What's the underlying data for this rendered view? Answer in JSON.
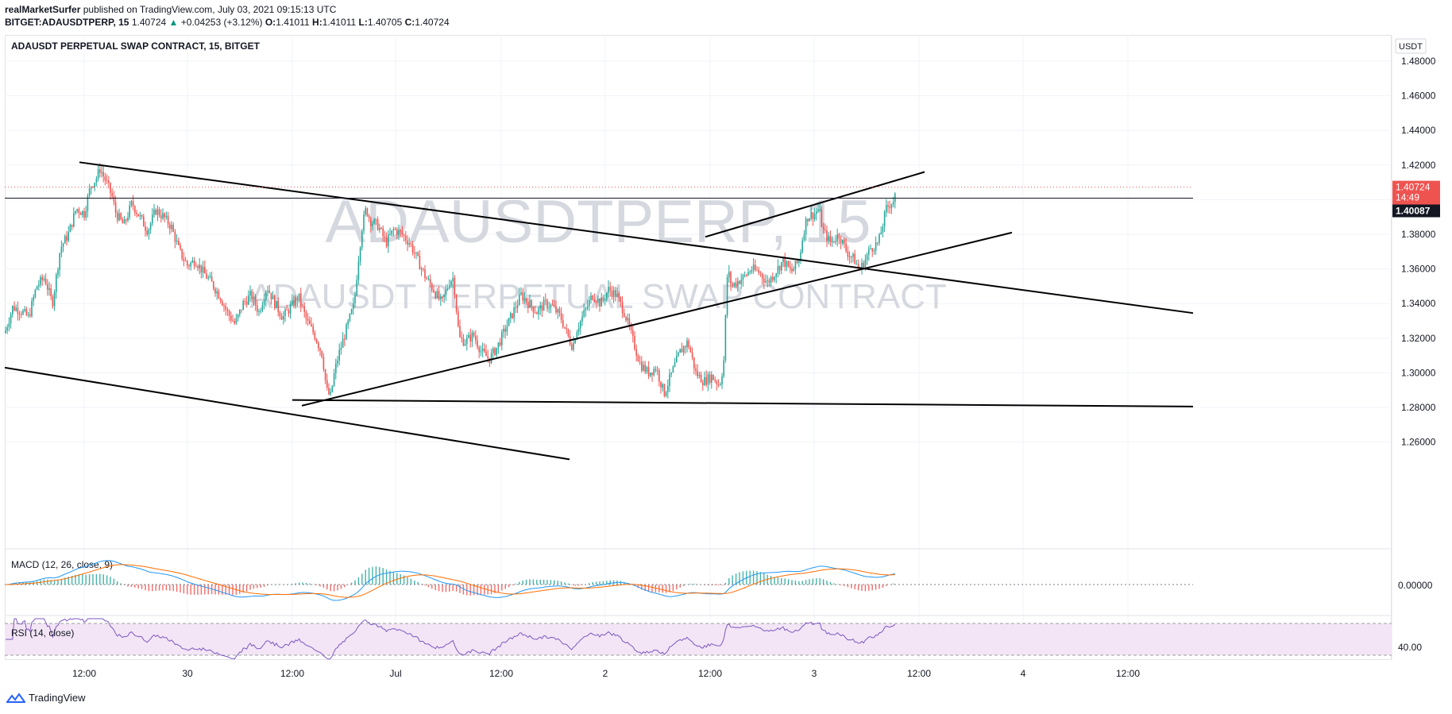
{
  "header": {
    "publisher": "realMarketSurfer",
    "published_on": " published on TradingView.com, July 03, 2021 09:15:13 UTC",
    "symbol": "BITGET:ADAUSDTPERP, 15",
    "last": " 1.40724",
    "arrow": "▲",
    "change": " +0.04253 (+3.12%)",
    "o_label": " O:",
    "o": "1.41011",
    "h_label": " H:",
    "h": "1.41011",
    "l_label": " L:",
    "l": "1.40705",
    "c_label": " C:",
    "c": "1.40724"
  },
  "pane_title": "ADAUSDT PERPETUAL SWAP CONTRACT, 15, BITGET",
  "watermark": {
    "symbol": "ADAUSDTPERP, 15",
    "description": "ADAUSDT PERPETUAL SWAP CONTRACT"
  },
  "currency_badge": "USDT",
  "price_badges": {
    "last": "1.40724",
    "countdown": "14:49",
    "level": "1.40087"
  },
  "macd_label": "MACD (12, 26, close, 9)",
  "rsi_label": "RSI (14, close)",
  "footer": {
    "brand": "TradingView"
  },
  "colors": {
    "up": "#26a69a",
    "down": "#ef5350",
    "macd": "#2196f3",
    "signal": "#ff6d00",
    "rsi": "#7e57c2",
    "rsi_band": "#f3e5f5"
  },
  "chart_data": {
    "type": "candlestick",
    "y_ticks": [
      "1.48000",
      "1.46000",
      "1.44000",
      "1.42000",
      "1.40000",
      "1.38000",
      "1.36000",
      "1.34000",
      "1.32000",
      "1.30000",
      "1.28000",
      "1.26000"
    ],
    "ylim": [
      1.2485,
      1.4985
    ],
    "x_ticks": [
      "12:00",
      "30",
      "12:00",
      "Jul",
      "12:00",
      "2",
      "12:00",
      "3",
      "12:00",
      "4",
      "12:00"
    ],
    "last_price": 1.40724,
    "level_line": 1.40087,
    "close_path": [
      [
        0,
        1.323
      ],
      [
        10,
        1.338
      ],
      [
        20,
        1.336
      ],
      [
        30,
        1.332
      ],
      [
        40,
        1.35
      ],
      [
        50,
        1.355
      ],
      [
        60,
        1.34
      ],
      [
        70,
        1.372
      ],
      [
        80,
        1.38
      ],
      [
        90,
        1.395
      ],
      [
        100,
        1.392
      ],
      [
        108,
        1.408
      ],
      [
        115,
        1.412
      ],
      [
        120,
        1.418
      ],
      [
        128,
        1.41
      ],
      [
        135,
        1.402
      ],
      [
        140,
        1.392
      ],
      [
        150,
        1.385
      ],
      [
        160,
        1.398
      ],
      [
        170,
        1.39
      ],
      [
        180,
        1.382
      ],
      [
        190,
        1.394
      ],
      [
        200,
        1.39
      ],
      [
        210,
        1.384
      ],
      [
        220,
        1.37
      ],
      [
        230,
        1.362
      ],
      [
        240,
        1.365
      ],
      [
        250,
        1.358
      ],
      [
        260,
        1.352
      ],
      [
        270,
        1.345
      ],
      [
        280,
        1.335
      ],
      [
        290,
        1.328
      ],
      [
        300,
        1.34
      ],
      [
        310,
        1.345
      ],
      [
        320,
        1.335
      ],
      [
        330,
        1.35
      ],
      [
        340,
        1.34
      ],
      [
        350,
        1.332
      ],
      [
        360,
        1.338
      ],
      [
        370,
        1.344
      ],
      [
        380,
        1.33
      ],
      [
        390,
        1.322
      ],
      [
        400,
        1.31
      ],
      [
        405,
        1.29
      ],
      [
        410,
        1.286
      ],
      [
        415,
        1.3
      ],
      [
        420,
        1.31
      ],
      [
        430,
        1.325
      ],
      [
        440,
        1.34
      ],
      [
        445,
        1.365
      ],
      [
        450,
        1.385
      ],
      [
        455,
        1.395
      ],
      [
        460,
        1.388
      ],
      [
        470,
        1.385
      ],
      [
        480,
        1.375
      ],
      [
        490,
        1.383
      ],
      [
        500,
        1.38
      ],
      [
        510,
        1.375
      ],
      [
        520,
        1.365
      ],
      [
        530,
        1.355
      ],
      [
        540,
        1.348
      ],
      [
        550,
        1.34
      ],
      [
        560,
        1.353
      ],
      [
        565,
        1.355
      ],
      [
        572,
        1.32
      ],
      [
        580,
        1.318
      ],
      [
        590,
        1.322
      ],
      [
        600,
        1.312
      ],
      [
        610,
        1.308
      ],
      [
        620,
        1.315
      ],
      [
        630,
        1.325
      ],
      [
        640,
        1.335
      ],
      [
        650,
        1.345
      ],
      [
        660,
        1.34
      ],
      [
        670,
        1.335
      ],
      [
        680,
        1.34
      ],
      [
        690,
        1.338
      ],
      [
        700,
        1.332
      ],
      [
        710,
        1.32
      ],
      [
        715,
        1.315
      ],
      [
        720,
        1.325
      ],
      [
        730,
        1.335
      ],
      [
        740,
        1.345
      ],
      [
        750,
        1.34
      ],
      [
        760,
        1.348
      ],
      [
        770,
        1.345
      ],
      [
        780,
        1.335
      ],
      [
        790,
        1.32
      ],
      [
        800,
        1.305
      ],
      [
        810,
        1.3
      ],
      [
        820,
        1.303
      ],
      [
        830,
        1.288
      ],
      [
        840,
        1.3
      ],
      [
        850,
        1.312
      ],
      [
        860,
        1.318
      ],
      [
        870,
        1.3
      ],
      [
        880,
        1.295
      ],
      [
        890,
        1.298
      ],
      [
        900,
        1.293
      ],
      [
        905,
        1.305
      ],
      [
        910,
        1.36
      ],
      [
        915,
        1.35
      ],
      [
        920,
        1.352
      ],
      [
        930,
        1.355
      ],
      [
        940,
        1.36
      ],
      [
        950,
        1.358
      ],
      [
        960,
        1.352
      ],
      [
        970,
        1.358
      ],
      [
        980,
        1.365
      ],
      [
        990,
        1.358
      ],
      [
        1000,
        1.365
      ],
      [
        1005,
        1.38
      ],
      [
        1010,
        1.39
      ],
      [
        1020,
        1.392
      ],
      [
        1025,
        1.395
      ],
      [
        1030,
        1.382
      ],
      [
        1040,
        1.375
      ],
      [
        1050,
        1.38
      ],
      [
        1060,
        1.37
      ],
      [
        1070,
        1.365
      ],
      [
        1075,
        1.36
      ],
      [
        1080,
        1.362
      ],
      [
        1090,
        1.372
      ],
      [
        1100,
        1.375
      ],
      [
        1105,
        1.385
      ],
      [
        1110,
        1.395
      ],
      [
        1115,
        1.398
      ],
      [
        1120,
        1.4
      ],
      [
        1125,
        1.412
      ],
      [
        1128,
        1.407
      ]
    ],
    "trendlines": [
      {
        "name": "descending-upper",
        "points": [
          [
            100,
            1.4216
          ],
          [
            1502,
            1.3345
          ]
        ]
      },
      {
        "name": "descending-lower",
        "points": [
          [
            6,
            1.303
          ],
          [
            717,
            1.25
          ]
        ]
      },
      {
        "name": "horizontal-support",
        "points": [
          [
            368,
            1.2843
          ],
          [
            1502,
            1.2805
          ]
        ]
      },
      {
        "name": "ascending-support",
        "points": [
          [
            380,
            1.281
          ],
          [
            1274,
            1.381
          ]
        ]
      },
      {
        "name": "upper-channel",
        "points": [
          [
            888,
            1.3785
          ],
          [
            1164,
            1.416
          ]
        ]
      },
      {
        "name": "resistance-level",
        "points": [
          [
            6,
            1.40087
          ],
          [
            1502,
            1.40087
          ]
        ]
      }
    ],
    "macd": {
      "zero_label": "0.00000"
    },
    "rsi": {
      "label_40": "40.00",
      "upper_band": 70,
      "lower_band": 30
    }
  }
}
